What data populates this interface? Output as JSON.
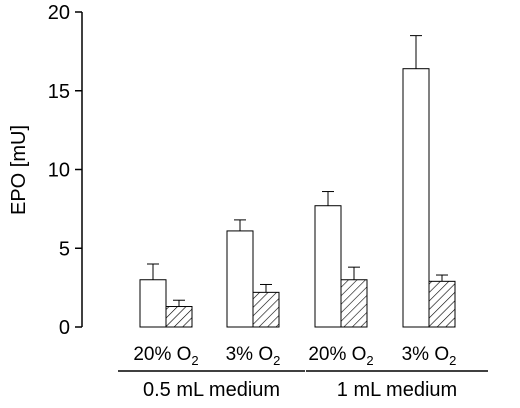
{
  "chart_data": {
    "type": "bar",
    "ylabel": "EPO [mU]",
    "ylim": [
      0,
      20
    ],
    "yticks": [
      "0",
      "5",
      "10",
      "15",
      "20"
    ],
    "categories": [
      {
        "label": "20% O",
        "sub": "2",
        "group": "0.5 mL medium"
      },
      {
        "label": "3% O",
        "sub": "2",
        "group": "0.5 mL medium"
      },
      {
        "label": "20% O",
        "sub": "2",
        "group": "1 mL medium"
      },
      {
        "label": "3% O",
        "sub": "2",
        "group": "1 mL medium"
      }
    ],
    "groups": [
      "0.5 mL medium",
      "1 mL medium"
    ],
    "series": [
      {
        "fill": "open",
        "values": [
          3.0,
          6.1,
          7.7,
          16.4
        ],
        "errors": [
          1.0,
          0.7,
          0.9,
          2.1
        ]
      },
      {
        "fill": "hatched",
        "values": [
          1.3,
          2.2,
          3.0,
          2.9
        ],
        "errors": [
          0.4,
          0.5,
          0.8,
          0.4
        ]
      }
    ],
    "colors": {
      "bar_fill": "#ffffff",
      "stroke": "#000000",
      "hatch": "#000000"
    },
    "grid": false,
    "legend": false
  }
}
